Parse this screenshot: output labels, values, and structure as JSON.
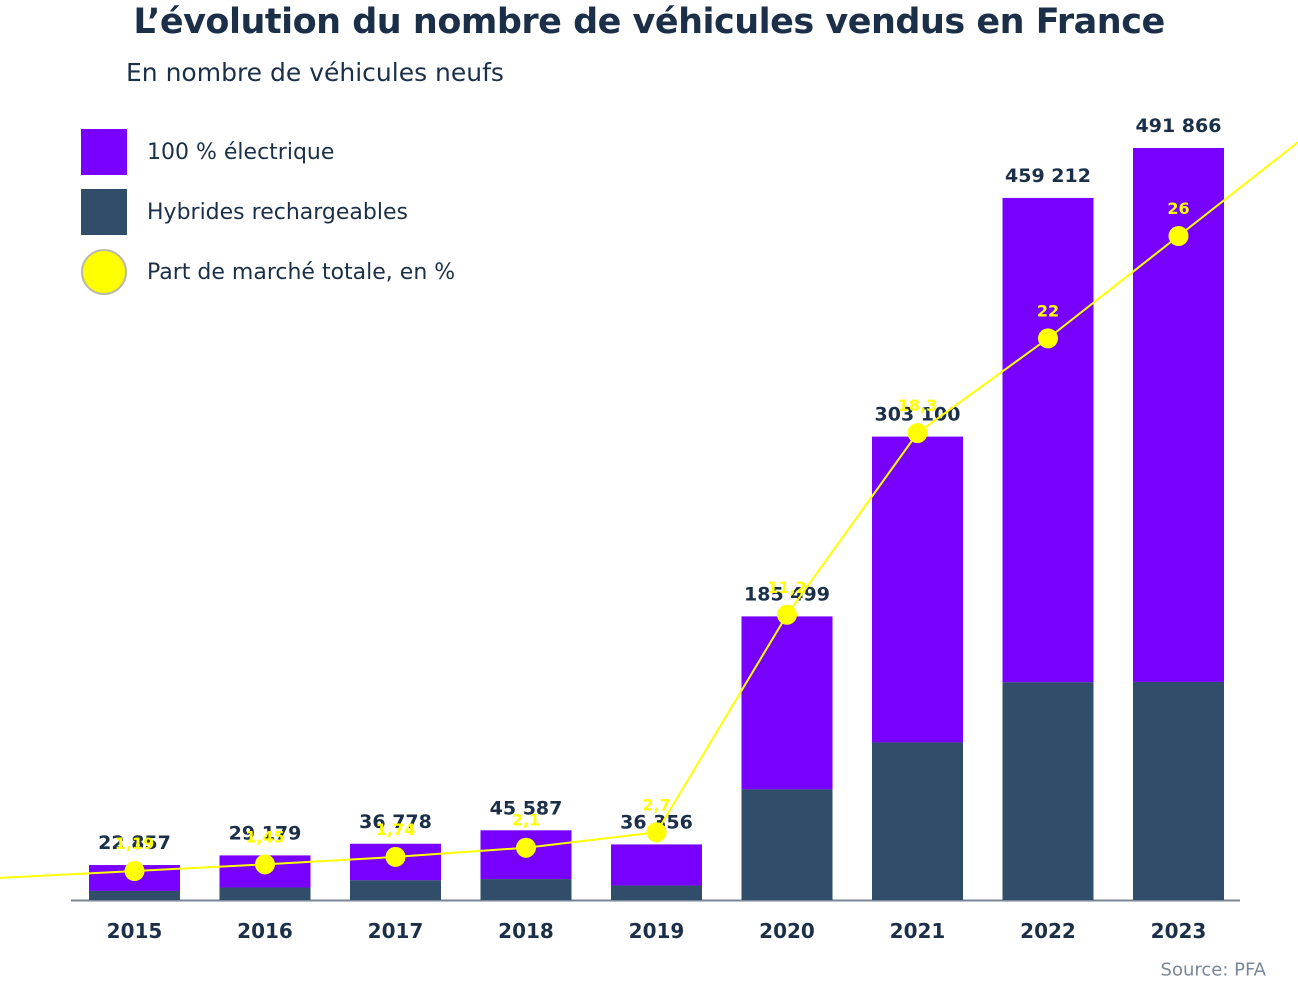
{
  "colors": {
    "electric": "#7700ff",
    "hybrid": "#304d69",
    "share": "#ffff00",
    "text": "#1b3048",
    "axis": "#7a8699"
  },
  "chart_data": {
    "type": "bar",
    "title": "L’évolution du nombre de véhicules vendus en France",
    "subtitle": "En nombre de véhicules neufs",
    "source": "Source: PFA",
    "xlabel": "",
    "ylabel": "",
    "grid": false,
    "legend_position": "top-left",
    "categories": [
      "2015",
      "2016",
      "2017",
      "2018",
      "2019",
      "2020",
      "2021",
      "2022",
      "2023"
    ],
    "totals": [
      22857,
      29179,
      36778,
      45587,
      36356,
      185499,
      303100,
      459212,
      491866
    ],
    "total_labels": [
      "22 857",
      "29 179",
      "36 778",
      "45 587",
      "36 356",
      "185 499",
      "303 100",
      "459 212",
      "491 866"
    ],
    "series": [
      {
        "name": "100 % électrique",
        "type": "bar-stacked"
      },
      {
        "name": "Hybrides rechargeables",
        "type": "bar-stacked"
      },
      {
        "name": "Part de marché totale, en %",
        "type": "line",
        "values": [
          1.19,
          1.45,
          1.74,
          2.1,
          2.7,
          11.2,
          18.3,
          22,
          26
        ],
        "labels": [
          "1,19",
          "1,45",
          "1,74",
          "2,1",
          "2,7",
          "11,2",
          "18,3",
          "22",
          "26"
        ]
      }
    ],
    "hybrid_share_of_bar": [
      0.26,
      0.28,
      0.35,
      0.3,
      0.26,
      0.39,
      0.34,
      0.31,
      0.29
    ],
    "ylim": [
      0,
      491866
    ],
    "y2lim": [
      0,
      30
    ]
  },
  "legend": [
    {
      "label": "100 % électrique",
      "kind": "square",
      "color": "#7700ff"
    },
    {
      "label": "Hybrides rechargeables",
      "kind": "square",
      "color": "#304d69"
    },
    {
      "label": "Part de marché totale, en %",
      "kind": "circle",
      "color": "#ffff00"
    }
  ]
}
